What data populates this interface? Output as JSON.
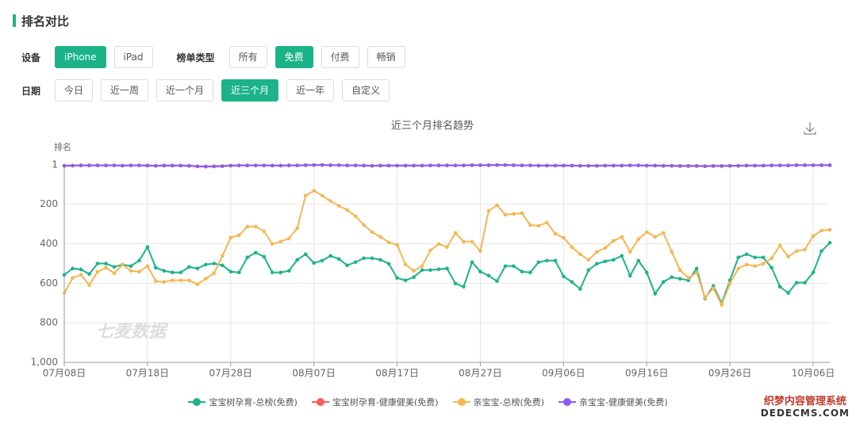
{
  "header": {
    "title": "排名对比"
  },
  "filters": [
    {
      "label": "设备",
      "options": [
        "iPhone",
        "iPad"
      ],
      "active": 0
    },
    {
      "label": "榜单类型",
      "options": [
        "所有",
        "免费",
        "付费",
        "畅销"
      ],
      "active": 1
    },
    {
      "label": "日期",
      "options": [
        "今日",
        "近一周",
        "近一个月",
        "近三个月",
        "近一年",
        "自定义"
      ],
      "active": 3
    }
  ],
  "chart_data": {
    "type": "line",
    "title": "近三个月排名趋势",
    "y_label": "排名",
    "watermark": "七麦数据",
    "y_inverted": true,
    "grid": true,
    "ylim": [
      1,
      1000
    ],
    "yticks": [
      1,
      200,
      400,
      600,
      800,
      {
        "value": 1000,
        "label": "1,000"
      }
    ],
    "categories": [
      "07月08日",
      null,
      null,
      null,
      null,
      null,
      null,
      null,
      null,
      null,
      "07月18日",
      null,
      null,
      null,
      null,
      null,
      null,
      null,
      null,
      null,
      "07月28日",
      null,
      null,
      null,
      null,
      null,
      null,
      null,
      null,
      null,
      "08月07日",
      null,
      null,
      null,
      null,
      null,
      null,
      null,
      null,
      null,
      "08月17日",
      null,
      null,
      null,
      null,
      null,
      null,
      null,
      null,
      null,
      "08月27日",
      null,
      null,
      null,
      null,
      null,
      null,
      null,
      null,
      null,
      "09月06日",
      null,
      null,
      null,
      null,
      null,
      null,
      null,
      null,
      null,
      "09月16日",
      null,
      null,
      null,
      null,
      null,
      null,
      null,
      null,
      null,
      "09月26日",
      null,
      null,
      null,
      null,
      null,
      null,
      null,
      null,
      null,
      "10月06日",
      null,
      null
    ],
    "series": [
      {
        "name": "宝宝树孕育-总榜(免费)",
        "color": "#1db388",
        "values": [
          557,
          525,
          530,
          553,
          500,
          500,
          517,
          505,
          513,
          485,
          417,
          521,
          537,
          545,
          545,
          517,
          525,
          505,
          500,
          509,
          541,
          545,
          469,
          445,
          465,
          545,
          545,
          537,
          481,
          453,
          497,
          485,
          461,
          477,
          509,
          493,
          473,
          473,
          481,
          501,
          573,
          585,
          569,
          533,
          533,
          529,
          525,
          601,
          617,
          493,
          541,
          561,
          589,
          513,
          513,
          541,
          545,
          493,
          485,
          485,
          565,
          593,
          629,
          533,
          501,
          489,
          481,
          461,
          561,
          485,
          545,
          653,
          593,
          569,
          577,
          585,
          525,
          677,
          613,
          701,
          585,
          469,
          453,
          469,
          469,
          521,
          617,
          649,
          597,
          597,
          545,
          437,
          395
        ]
      },
      {
        "name": "宝宝树孕育-健康健美(免费)",
        "color": "#ff5a5a",
        "values": [
          6,
          5,
          4,
          4,
          4,
          4,
          4,
          5,
          4,
          4,
          5,
          6,
          5,
          5,
          5,
          6,
          9,
          10,
          9,
          8,
          5,
          4,
          4,
          4,
          4,
          5,
          5,
          4,
          4,
          3,
          2,
          2,
          3,
          3,
          4,
          4,
          5,
          6,
          5,
          5,
          5,
          5,
          5,
          5,
          4,
          4,
          4,
          4,
          4,
          3,
          3,
          3,
          2,
          2,
          3,
          4,
          4,
          5,
          5,
          5,
          5,
          5,
          6,
          6,
          6,
          5,
          5,
          5,
          4,
          4,
          5,
          5,
          6,
          6,
          7,
          7,
          7,
          8,
          7,
          7,
          6,
          6,
          5,
          5,
          5,
          4,
          4,
          4,
          3,
          3,
          3,
          3,
          3
        ]
      },
      {
        "name": "亲宝宝-总榜(免费)",
        "color": "#f6b654",
        "values": [
          650,
          573,
          557,
          609,
          541,
          521,
          549,
          505,
          537,
          541,
          513,
          589,
          593,
          585,
          585,
          585,
          605,
          577,
          549,
          461,
          369,
          357,
          313,
          313,
          337,
          401,
          389,
          373,
          321,
          156,
          132,
          156,
          184,
          208,
          229,
          261,
          305,
          341,
          365,
          393,
          405,
          505,
          537,
          513,
          433,
          401,
          417,
          345,
          389,
          389,
          437,
          233,
          205,
          253,
          249,
          245,
          305,
          309,
          293,
          349,
          369,
          417,
          453,
          481,
          441,
          421,
          385,
          365,
          441,
          377,
          341,
          365,
          345,
          441,
          533,
          573,
          545,
          673,
          625,
          709,
          601,
          525,
          505,
          513,
          501,
          473,
          409,
          465,
          437,
          429,
          361,
          333,
          329
        ]
      },
      {
        "name": "亲宝宝-健康健美(免费)",
        "color": "#8b5cf0",
        "values": [
          5,
          4,
          3,
          3,
          3,
          3,
          3,
          4,
          3,
          3,
          4,
          5,
          4,
          4,
          4,
          5,
          8,
          9,
          8,
          7,
          4,
          3,
          3,
          3,
          3,
          4,
          4,
          3,
          3,
          2,
          1,
          1,
          2,
          2,
          3,
          3,
          4,
          5,
          4,
          4,
          4,
          4,
          4,
          4,
          3,
          3,
          3,
          3,
          3,
          2,
          2,
          2,
          1,
          1,
          2,
          3,
          3,
          4,
          4,
          4,
          4,
          4,
          5,
          5,
          5,
          4,
          4,
          4,
          3,
          3,
          4,
          4,
          5,
          5,
          6,
          6,
          6,
          7,
          6,
          6,
          5,
          5,
          4,
          4,
          4,
          3,
          3,
          3,
          2,
          2,
          2,
          2,
          2
        ]
      }
    ]
  },
  "site_watermark": [
    "织梦内容管理系统",
    "DEDECMS.COM"
  ]
}
